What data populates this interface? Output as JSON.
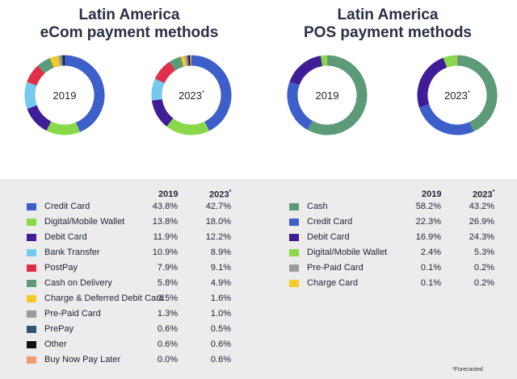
{
  "titles": {
    "left_line1": "Latin America",
    "left_line2": "eCom payment methods",
    "right_line1": "Latin America",
    "right_line2": "POS payment methods"
  },
  "donut_labels": {
    "ecom_2019": "2019",
    "ecom_2023": "2023",
    "pos_2019": "2019",
    "pos_2023": "2023",
    "star": "*"
  },
  "table_headers": {
    "ecom_2019": "2019",
    "ecom_2023": "2023",
    "pos_2019": "2019",
    "pos_2023": "2023",
    "star": "*"
  },
  "footnote": "*Forecasted",
  "chart_data": [
    {
      "type": "pie",
      "title": "Latin America eCom payment methods",
      "categories": [
        "Credit Card",
        "Digital/Mobile Wallet",
        "Debit Card",
        "Bank Transfer",
        "PostPay",
        "Cash on Delivery",
        "Charge & Deferred Debit Card",
        "Pre-Paid Card",
        "PrePay",
        "Other",
        "Buy Now Pay Later"
      ],
      "colors": [
        "#3d5fc9",
        "#88d84a",
        "#3f1d96",
        "#73c9ee",
        "#e02f4b",
        "#5c9a78",
        "#f5c928",
        "#9a9a9a",
        "#33536f",
        "#111111",
        "#ee9a78"
      ],
      "series": [
        {
          "name": "2019",
          "values": [
            43.8,
            13.8,
            11.9,
            10.9,
            7.9,
            5.8,
            3.5,
            1.3,
            0.6,
            0.6,
            0.0
          ],
          "labels": [
            "43.8%",
            "13.8%",
            "11.9%",
            "10.9%",
            "7.9%",
            "5.8%",
            "3.5%",
            "1.3%",
            "0.6%",
            "0.6%",
            "0.0%"
          ]
        },
        {
          "name": "2023",
          "values": [
            42.7,
            18.0,
            12.2,
            8.9,
            9.1,
            4.9,
            1.6,
            1.0,
            0.5,
            0.6,
            0.6
          ],
          "labels": [
            "42.7%",
            "18.0%",
            "12.2%",
            "8.9%",
            "9.1%",
            "4.9%",
            "1.6%",
            "1.0%",
            "0.5%",
            "0.6%",
            "0.6%"
          ]
        }
      ]
    },
    {
      "type": "pie",
      "title": "Latin America POS payment methods",
      "categories": [
        "Cash",
        "Credit Card",
        "Debit Card",
        "Digital/Mobile Wallet",
        "Pre-Paid Card",
        "Charge Card"
      ],
      "colors": [
        "#5c9a78",
        "#3d5fc9",
        "#3f1d96",
        "#88d84a",
        "#9a9a9a",
        "#f5c928"
      ],
      "series": [
        {
          "name": "2019",
          "values": [
            58.2,
            22.3,
            16.9,
            2.4,
            0.1,
            0.1
          ],
          "labels": [
            "58.2%",
            "22.3%",
            "16.9%",
            "2.4%",
            "0.1%",
            "0.1%"
          ]
        },
        {
          "name": "2023",
          "values": [
            43.2,
            26.9,
            24.3,
            5.3,
            0.2,
            0.2
          ],
          "labels": [
            "43.2%",
            "26.9%",
            "24.3%",
            "5.3%",
            "0.2%",
            "0.2%"
          ]
        }
      ]
    }
  ]
}
